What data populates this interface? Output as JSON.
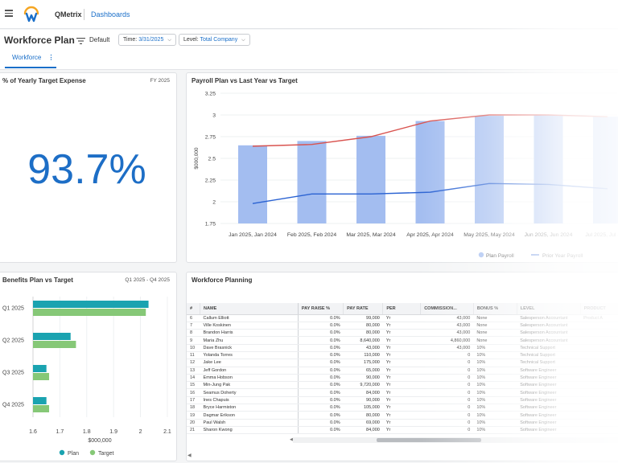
{
  "topbar": {
    "app_name": "QMetrix",
    "dashboards_link": "Dashboards"
  },
  "header": {
    "title": "Workforce Plan",
    "view_label": "Default",
    "time_filter": {
      "label": "Time:",
      "value": "3/31/2025"
    },
    "level_filter": {
      "label": "Level:",
      "value": "Total Company"
    },
    "tab": "Workforce"
  },
  "kpi": {
    "title": "% of Yearly Target Expense",
    "period": "FY 2025",
    "value": "93.7%"
  },
  "colors": {
    "accent": "#1a6fc9",
    "kpi_blue": "#1d6ec6",
    "bar_blue": "#a3bdf0",
    "plan_line": "#2a62d2",
    "target_line": "#d9534f",
    "benefit_plan": "#1aa3b0",
    "benefit_target": "#86c877"
  },
  "chart_data": [
    {
      "type": "bar",
      "title": "Payroll Plan vs Last Year vs Target",
      "ylabel": "$000,000",
      "ylim": [
        1.75,
        3.25
      ],
      "yticks": [
        "3.25",
        "3",
        "2.75",
        "2.5",
        "2.25",
        "2",
        "1.75"
      ],
      "categories": [
        "Jan 2025, Jan 2024",
        "Feb 2025, Feb 2024",
        "Mar 2025, Mar 2024",
        "Apr 2025, Apr 2024",
        "May 2025, May 2024",
        "Jun 2025, Jun 2024",
        "Jul 2025, Jul 2024"
      ],
      "series": [
        {
          "name": "Plan Payroll",
          "kind": "bar",
          "values": [
            2.65,
            2.7,
            2.76,
            2.93,
            2.99,
            3.0,
            2.98
          ]
        },
        {
          "name": "Prior Year Payroll",
          "kind": "line",
          "values": [
            1.98,
            2.09,
            2.09,
            2.11,
            2.21,
            2.2,
            2.15
          ]
        },
        {
          "name": "",
          "kind": "line",
          "values": [
            2.64,
            2.66,
            2.75,
            2.93,
            3.0,
            3.0,
            2.98
          ]
        }
      ],
      "legend": "bottom"
    },
    {
      "type": "bar",
      "orientation": "horizontal",
      "title": "Benefits Plan vs Target",
      "subtitle": "Q1 2025 - Q4 2025",
      "xlabel": "$000,000",
      "xlim": [
        1.6,
        2.1
      ],
      "xticks": [
        "1.6",
        "1.7",
        "1.8",
        "1.9",
        "2",
        "2.1"
      ],
      "categories": [
        "Q1 2025",
        "Q2 2025",
        "Q3 2025",
        "Q4 2025"
      ],
      "series": [
        {
          "name": "Plan",
          "values": [
            2.03,
            1.74,
            1.65,
            1.65
          ]
        },
        {
          "name": "Target",
          "values": [
            2.02,
            1.76,
            1.66,
            1.66
          ]
        }
      ],
      "legend": "bottom"
    }
  ],
  "workforce": {
    "title": "Workforce Planning",
    "columns": [
      "#",
      "NAME",
      "PAY RAISE %",
      "PAY RATE",
      "PER",
      "COMMISSION...",
      "BONUS %",
      "LEVEL",
      "PRODUCT"
    ],
    "rows": [
      {
        "n": "6",
        "name": "Callum Elliott",
        "raise": "0.0%",
        "rate": "99,000",
        "per": "Yr",
        "comm": "43,000",
        "bonus": "None",
        "level": "Salesperson Accountant",
        "product": "Product A"
      },
      {
        "n": "7",
        "name": "Ville Koskinen",
        "raise": "0.0%",
        "rate": "80,000",
        "per": "Yr",
        "comm": "43,000",
        "bonus": "None",
        "level": "Salesperson Accountant",
        "product": ""
      },
      {
        "n": "8",
        "name": "Brandon Harris",
        "raise": "0.0%",
        "rate": "80,000",
        "per": "Yr",
        "comm": "43,000",
        "bonus": "None",
        "level": "Salesperson Accountant",
        "product": ""
      },
      {
        "n": "9",
        "name": "Maria Zhu",
        "raise": "0.0%",
        "rate": "8,640,000",
        "per": "Yr",
        "comm": "4,860,000",
        "bonus": "None",
        "level": "Salesperson Accountant",
        "product": ""
      },
      {
        "n": "10",
        "name": "Dave Brasnick",
        "raise": "0.0%",
        "rate": "43,000",
        "per": "Yr",
        "comm": "43,000",
        "bonus": "10%",
        "level": "Technical Support",
        "product": ""
      },
      {
        "n": "11",
        "name": "Yolanda Torres",
        "raise": "0.0%",
        "rate": "110,000",
        "per": "Yr",
        "comm": "0",
        "bonus": "10%",
        "level": "Technical Support",
        "product": ""
      },
      {
        "n": "12",
        "name": "Jake Lee",
        "raise": "0.0%",
        "rate": "175,000",
        "per": "Yr",
        "comm": "0",
        "bonus": "10%",
        "level": "Technical Support",
        "product": ""
      },
      {
        "n": "13",
        "name": "Jeff Gordon",
        "raise": "0.0%",
        "rate": "65,000",
        "per": "Yr",
        "comm": "0",
        "bonus": "10%",
        "level": "Software Engineer",
        "product": ""
      },
      {
        "n": "14",
        "name": "Emma Hobson",
        "raise": "0.0%",
        "rate": "90,000",
        "per": "Yr",
        "comm": "0",
        "bonus": "10%",
        "level": "Software Engineer",
        "product": ""
      },
      {
        "n": "15",
        "name": "Min-Jung Pak",
        "raise": "0.0%",
        "rate": "9,720,000",
        "per": "Yr",
        "comm": "0",
        "bonus": "10%",
        "level": "Software Engineer",
        "product": ""
      },
      {
        "n": "16",
        "name": "Seamus Doherty",
        "raise": "0.0%",
        "rate": "84,000",
        "per": "Yr",
        "comm": "0",
        "bonus": "10%",
        "level": "Software Engineer",
        "product": ""
      },
      {
        "n": "17",
        "name": "Ines Chapuis",
        "raise": "0.0%",
        "rate": "90,000",
        "per": "Yr",
        "comm": "0",
        "bonus": "10%",
        "level": "Software Engineer",
        "product": ""
      },
      {
        "n": "18",
        "name": "Bryce Harmiston",
        "raise": "0.0%",
        "rate": "105,000",
        "per": "Yr",
        "comm": "0",
        "bonus": "10%",
        "level": "Software Engineer",
        "product": ""
      },
      {
        "n": "19",
        "name": "Dagmar Erikson",
        "raise": "0.0%",
        "rate": "80,000",
        "per": "Yr",
        "comm": "0",
        "bonus": "10%",
        "level": "Software Engineer",
        "product": ""
      },
      {
        "n": "20",
        "name": "Paul Walsh",
        "raise": "0.0%",
        "rate": "69,000",
        "per": "Yr",
        "comm": "0",
        "bonus": "10%",
        "level": "Software Engineer",
        "product": ""
      },
      {
        "n": "21",
        "name": "Sharon Kwong",
        "raise": "0.0%",
        "rate": "84,000",
        "per": "Yr",
        "comm": "0",
        "bonus": "10%",
        "level": "Software Engineer",
        "product": ""
      }
    ]
  }
}
